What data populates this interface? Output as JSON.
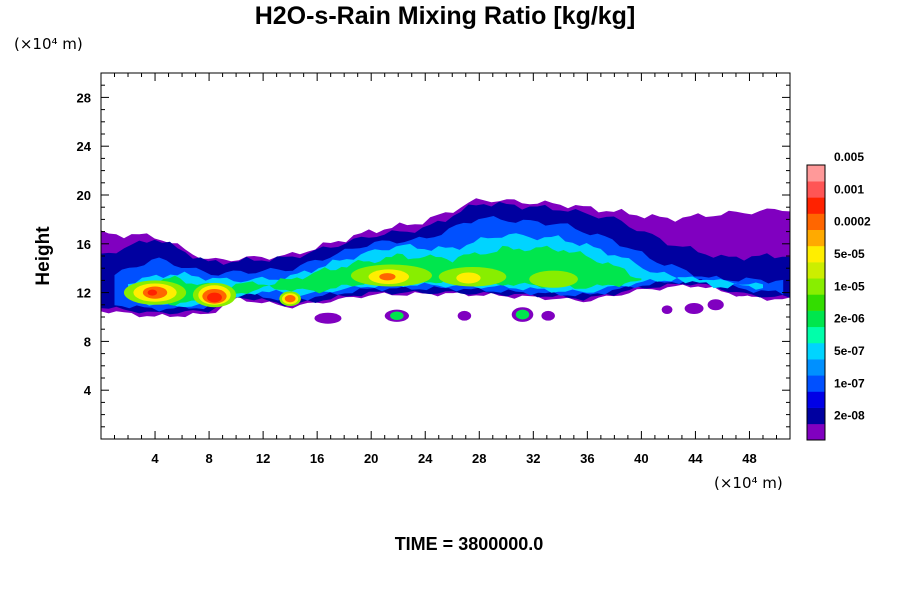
{
  "chart_data": {
    "type": "heatmap",
    "title": "H2O-s-Rain Mixing Ratio [kg/kg]",
    "ylabel": "Height",
    "xunit_label": "(×10⁴ m)",
    "yunit_label": "(×10⁴ m)",
    "footer": "TIME = 3800000.0",
    "xlim": [
      0,
      51
    ],
    "ylim": [
      0,
      30
    ],
    "xticks": [
      {
        "value": 4,
        "label": "4"
      },
      {
        "value": 8,
        "label": "8"
      },
      {
        "value": 12,
        "label": "12"
      },
      {
        "value": 16,
        "label": "16"
      },
      {
        "value": 20,
        "label": "20"
      },
      {
        "value": 24,
        "label": "24"
      },
      {
        "value": 28,
        "label": "28"
      },
      {
        "value": 32,
        "label": "32"
      },
      {
        "value": 36,
        "label": "36"
      },
      {
        "value": 40,
        "label": "40"
      },
      {
        "value": 44,
        "label": "44"
      },
      {
        "value": 48,
        "label": "48"
      }
    ],
    "yticks": [
      {
        "value": 4,
        "label": "4"
      },
      {
        "value": 8,
        "label": "8"
      },
      {
        "value": 12,
        "label": "12"
      },
      {
        "value": 16,
        "label": "16"
      },
      {
        "value": 20,
        "label": "20"
      },
      {
        "value": 24,
        "label": "24"
      },
      {
        "value": 28,
        "label": "28"
      }
    ],
    "colorbar": {
      "colors": [
        "#8000c0",
        "#0000a0",
        "#0000e6",
        "#0050ff",
        "#0090ff",
        "#00d4ff",
        "#00ffaa",
        "#00e64d",
        "#33dd00",
        "#88ee00",
        "#ccee00",
        "#ffee00",
        "#ffaa00",
        "#ff6600",
        "#ff2200",
        "#ff5555",
        "#ff9999"
      ],
      "labels": [
        "2e-08",
        "1e-07",
        "5e-07",
        "2e-06",
        "1e-05",
        "5e-05",
        "0.0002",
        "0.001",
        "0.005"
      ]
    },
    "field_levels": [
      {
        "level": 0,
        "features": [
          {
            "shape": "band",
            "x0": 0,
            "x1": 51,
            "top": [
              [
                0,
                16.8
              ],
              [
                4,
                16.6
              ],
              [
                8,
                14.6
              ],
              [
                14,
                15.0
              ],
              [
                20,
                17.0
              ],
              [
                24,
                17.8
              ],
              [
                28,
                19.6
              ],
              [
                34,
                19.2
              ],
              [
                38,
                18.6
              ],
              [
                42,
                18.0
              ],
              [
                46,
                18.4
              ],
              [
                51,
                18.8
              ]
            ],
            "bottom": [
              [
                0,
                10.5
              ],
              [
                4,
                10.0
              ],
              [
                8,
                10.2
              ],
              [
                10,
                11.5
              ],
              [
                14,
                10.8
              ],
              [
                20,
                11.8
              ],
              [
                26,
                11.9
              ],
              [
                32,
                11.6
              ],
              [
                36,
                11.3
              ],
              [
                40,
                12.2
              ],
              [
                44,
                12.6
              ],
              [
                48,
                11.6
              ],
              [
                51,
                11.4
              ]
            ]
          },
          {
            "shape": "ellipse",
            "cx": 16.8,
            "cy": 9.9,
            "rx": 1.0,
            "ry": 0.45
          },
          {
            "shape": "ellipse",
            "cx": 21.9,
            "cy": 10.1,
            "rx": 0.9,
            "ry": 0.5
          },
          {
            "shape": "ellipse",
            "cx": 26.9,
            "cy": 10.1,
            "rx": 0.5,
            "ry": 0.4
          },
          {
            "shape": "ellipse",
            "cx": 31.2,
            "cy": 10.2,
            "rx": 0.8,
            "ry": 0.6
          },
          {
            "shape": "ellipse",
            "cx": 33.1,
            "cy": 10.1,
            "rx": 0.5,
            "ry": 0.4
          },
          {
            "shape": "ellipse",
            "cx": 41.9,
            "cy": 10.6,
            "rx": 0.4,
            "ry": 0.35
          },
          {
            "shape": "ellipse",
            "cx": 43.9,
            "cy": 10.7,
            "rx": 0.7,
            "ry": 0.45
          },
          {
            "shape": "ellipse",
            "cx": 45.5,
            "cy": 11.0,
            "rx": 0.6,
            "ry": 0.45
          },
          {
            "shape": "ellipse",
            "cx": 47.4,
            "cy": 12.3,
            "rx": 1.0,
            "ry": 0.6
          }
        ]
      },
      {
        "level": 1,
        "features": [
          {
            "shape": "band",
            "x0": 0,
            "x1": 51,
            "top": [
              [
                0,
                15.0
              ],
              [
                4,
                16.4
              ],
              [
                8,
                14.4
              ],
              [
                14,
                14.8
              ],
              [
                20,
                16.6
              ],
              [
                24,
                17.2
              ],
              [
                28,
                19.3
              ],
              [
                34,
                18.8
              ],
              [
                38,
                18.0
              ],
              [
                42,
                16.0
              ],
              [
                46,
                14.8
              ],
              [
                51,
                15.0
              ]
            ],
            "bottom": [
              [
                0,
                10.8
              ],
              [
                4,
                10.3
              ],
              [
                8,
                10.5
              ],
              [
                10,
                11.7
              ],
              [
                14,
                11.0
              ],
              [
                20,
                12.0
              ],
              [
                26,
                12.0
              ],
              [
                32,
                11.8
              ],
              [
                36,
                11.5
              ],
              [
                40,
                12.4
              ],
              [
                44,
                12.8
              ],
              [
                48,
                11.8
              ],
              [
                51,
                11.6
              ]
            ]
          }
        ]
      },
      {
        "level": 3,
        "features": [
          {
            "shape": "band",
            "x0": 1,
            "x1": 50.5,
            "top": [
              [
                1,
                13.4
              ],
              [
                4,
                14.8
              ],
              [
                8,
                13.6
              ],
              [
                14,
                13.9
              ],
              [
                20,
                16.0
              ],
              [
                24,
                16.4
              ],
              [
                28,
                18.2
              ],
              [
                34,
                17.6
              ],
              [
                38,
                16.2
              ],
              [
                41,
                14.6
              ],
              [
                45,
                13.2
              ],
              [
                50.5,
                13.0
              ]
            ],
            "bottom": [
              [
                1,
                11.0
              ],
              [
                4,
                10.6
              ],
              [
                8,
                10.8
              ],
              [
                10,
                12.0
              ],
              [
                14,
                11.4
              ],
              [
                20,
                12.3
              ],
              [
                26,
                12.3
              ],
              [
                32,
                12.0
              ],
              [
                36,
                11.8
              ],
              [
                40,
                12.6
              ],
              [
                44,
                13.0
              ],
              [
                48,
                12.2
              ],
              [
                50.5,
                12.0
              ]
            ]
          }
        ]
      },
      {
        "level": 5,
        "features": [
          {
            "shape": "band",
            "x0": 2,
            "x1": 49,
            "top": [
              [
                2,
                12.8
              ],
              [
                5,
                13.6
              ],
              [
                9,
                13.0
              ],
              [
                14,
                13.2
              ],
              [
                18,
                14.8
              ],
              [
                22,
                15.8
              ],
              [
                26,
                15.6
              ],
              [
                30,
                16.8
              ],
              [
                34,
                16.4
              ],
              [
                38,
                15.2
              ],
              [
                41,
                13.6
              ],
              [
                45,
                12.6
              ],
              [
                49,
                12.4
              ]
            ],
            "bottom": [
              [
                2,
                11.3
              ],
              [
                5,
                10.9
              ],
              [
                9,
                11.1
              ],
              [
                12,
                12.2
              ],
              [
                15,
                11.8
              ],
              [
                20,
                12.6
              ],
              [
                26,
                12.6
              ],
              [
                32,
                12.3
              ],
              [
                36,
                12.0
              ],
              [
                40,
                12.9
              ],
              [
                44,
                13.2
              ],
              [
                49,
                12.6
              ]
            ]
          }
        ]
      },
      {
        "level": 7,
        "features": [
          {
            "shape": "band",
            "x0": 3,
            "x1": 40,
            "top": [
              [
                3,
                12.6
              ],
              [
                5,
                13.2
              ],
              [
                8,
                12.6
              ],
              [
                13,
                12.8
              ],
              [
                18,
                14.2
              ],
              [
                22,
                15.0
              ],
              [
                26,
                14.8
              ],
              [
                30,
                15.6
              ],
              [
                34,
                15.6
              ],
              [
                37,
                14.6
              ],
              [
                40,
                13.2
              ]
            ],
            "bottom": [
              [
                3,
                11.5
              ],
              [
                5,
                11.1
              ],
              [
                8,
                11.3
              ],
              [
                12,
                12.4
              ],
              [
                16,
                12.1
              ],
              [
                20,
                12.9
              ],
              [
                26,
                12.9
              ],
              [
                32,
                12.6
              ],
              [
                36,
                12.4
              ],
              [
                40,
                12.9
              ]
            ]
          },
          {
            "shape": "ellipse",
            "cx": 31.2,
            "cy": 10.2,
            "rx": 0.5,
            "ry": 0.4
          },
          {
            "shape": "ellipse",
            "cx": 21.9,
            "cy": 10.1,
            "rx": 0.5,
            "ry": 0.35
          }
        ]
      },
      {
        "level": 9,
        "features": [
          {
            "shape": "ellipse",
            "cx": 4.0,
            "cy": 12.0,
            "rx": 2.3,
            "ry": 1.0
          },
          {
            "shape": "ellipse",
            "cx": 8.4,
            "cy": 11.8,
            "rx": 1.6,
            "ry": 1.0
          },
          {
            "shape": "ellipse",
            "cx": 14.0,
            "cy": 11.5,
            "rx": 0.8,
            "ry": 0.6
          },
          {
            "shape": "ellipse",
            "cx": 21.5,
            "cy": 13.4,
            "rx": 3.0,
            "ry": 0.9
          },
          {
            "shape": "ellipse",
            "cx": 27.5,
            "cy": 13.3,
            "rx": 2.5,
            "ry": 0.8
          },
          {
            "shape": "ellipse",
            "cx": 33.5,
            "cy": 13.1,
            "rx": 1.8,
            "ry": 0.7
          }
        ]
      },
      {
        "level": 11,
        "features": [
          {
            "shape": "ellipse",
            "cx": 4.0,
            "cy": 12.0,
            "rx": 1.6,
            "ry": 0.75
          },
          {
            "shape": "ellipse",
            "cx": 8.4,
            "cy": 11.8,
            "rx": 1.2,
            "ry": 0.8
          },
          {
            "shape": "ellipse",
            "cx": 14.0,
            "cy": 11.5,
            "rx": 0.6,
            "ry": 0.45
          },
          {
            "shape": "ellipse",
            "cx": 21.3,
            "cy": 13.3,
            "rx": 1.5,
            "ry": 0.6
          },
          {
            "shape": "ellipse",
            "cx": 27.2,
            "cy": 13.2,
            "rx": 0.9,
            "ry": 0.45
          }
        ]
      },
      {
        "level": 13,
        "features": [
          {
            "shape": "ellipse",
            "cx": 4.0,
            "cy": 12.0,
            "rx": 0.9,
            "ry": 0.5
          },
          {
            "shape": "ellipse",
            "cx": 8.4,
            "cy": 11.7,
            "rx": 0.9,
            "ry": 0.6
          },
          {
            "shape": "ellipse",
            "cx": 14.0,
            "cy": 11.5,
            "rx": 0.4,
            "ry": 0.3
          },
          {
            "shape": "ellipse",
            "cx": 21.2,
            "cy": 13.3,
            "rx": 0.6,
            "ry": 0.3
          }
        ]
      },
      {
        "level": 14,
        "features": [
          {
            "shape": "ellipse",
            "cx": 8.4,
            "cy": 11.6,
            "rx": 0.55,
            "ry": 0.4
          },
          {
            "shape": "ellipse",
            "cx": 3.8,
            "cy": 12.0,
            "rx": 0.35,
            "ry": 0.25
          }
        ]
      }
    ]
  }
}
